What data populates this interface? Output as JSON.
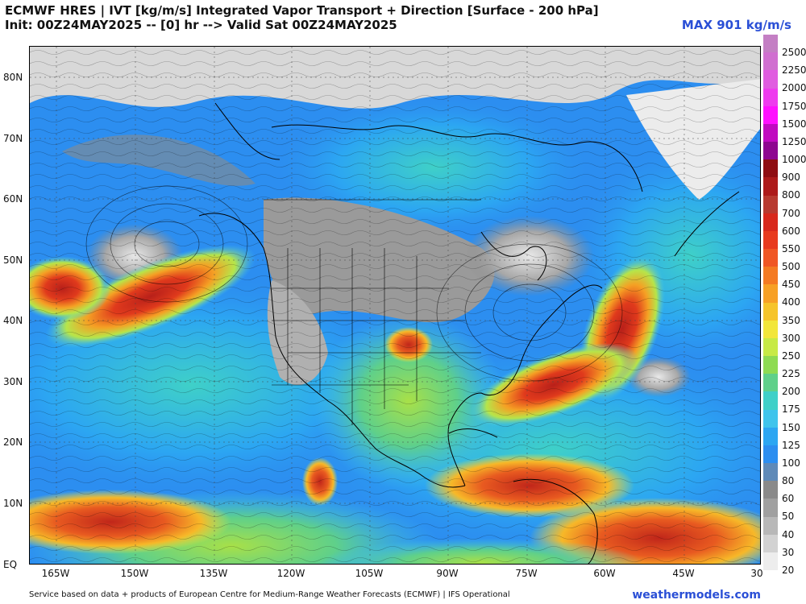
{
  "header": {
    "title": "ECMWF HRES | IVT [kg/m/s] Integrated Vapor Transport + Direction [Surface - 200 hPa]",
    "subtitle": "Init: 00Z24MAY2025 -- [0] hr --> Valid Sat 00Z24MAY2025",
    "max_label": "MAX 901 kg/m/s"
  },
  "map": {
    "lat_labels": [
      "80N",
      "70N",
      "60N",
      "50N",
      "40N",
      "30N",
      "20N",
      "10N",
      "EQ"
    ],
    "lon_labels": [
      "165W",
      "150W",
      "135W",
      "120W",
      "105W",
      "90W",
      "75W",
      "60W",
      "45W",
      "30"
    ],
    "colors": {
      "land_gray": "#8a8a8a",
      "low_ivt": "#cfcfcf",
      "blue": "#2c8ef0",
      "cyan": "#3fd0e8",
      "yellow": "#f2e63a",
      "orange": "#f07a22",
      "red": "#d8281c",
      "border": "#000000"
    },
    "features": [
      {
        "name": "pacific-atmospheric-river",
        "type": "streak"
      },
      {
        "name": "atlantic-atmospheric-river",
        "type": "streak"
      },
      {
        "name": "tropical-moisture-band",
        "type": "band"
      }
    ]
  },
  "colorbar": {
    "ticks": [
      {
        "label": "2500",
        "color": "#c47fc4"
      },
      {
        "label": "2250",
        "color": "#d06fd0"
      },
      {
        "label": "2000",
        "color": "#e05ce0"
      },
      {
        "label": "1750",
        "color": "#ee3bee"
      },
      {
        "label": "1500",
        "color": "#ff10ff"
      },
      {
        "label": "1250",
        "color": "#c00ac0"
      },
      {
        "label": "1000",
        "color": "#8e0690"
      },
      {
        "label": "900",
        "color": "#8f0d12"
      },
      {
        "label": "800",
        "color": "#ad1a1a"
      },
      {
        "label": "700",
        "color": "#b83a30"
      },
      {
        "label": "600",
        "color": "#d8281c"
      },
      {
        "label": "550",
        "color": "#e83a1e"
      },
      {
        "label": "500",
        "color": "#f05624"
      },
      {
        "label": "450",
        "color": "#f47a22"
      },
      {
        "label": "400",
        "color": "#f7a025"
      },
      {
        "label": "350",
        "color": "#f6c42a"
      },
      {
        "label": "300",
        "color": "#f2e63a"
      },
      {
        "label": "250",
        "color": "#c7ea46"
      },
      {
        "label": "225",
        "color": "#8edb52"
      },
      {
        "label": "200",
        "color": "#5fd08a"
      },
      {
        "label": "175",
        "color": "#3fd0c8"
      },
      {
        "label": "150",
        "color": "#3fc4ec"
      },
      {
        "label": "125",
        "color": "#2ca6f2"
      },
      {
        "label": "100",
        "color": "#2c8ef0"
      },
      {
        "label": "80",
        "color": "#5f8ab8"
      },
      {
        "label": "60",
        "color": "#8a8a8a"
      },
      {
        "label": "50",
        "color": "#a0a0a0"
      },
      {
        "label": "40",
        "color": "#b8b8b8"
      },
      {
        "label": "30",
        "color": "#d2d2d2"
      },
      {
        "label": "20",
        "color": "#ededed"
      }
    ]
  },
  "footer": {
    "credit": "Service based on data + products of European Centre for Medium-Range Weather Forecasts (ECMWF) | IFS Operational",
    "site": "weathermodels.com"
  }
}
